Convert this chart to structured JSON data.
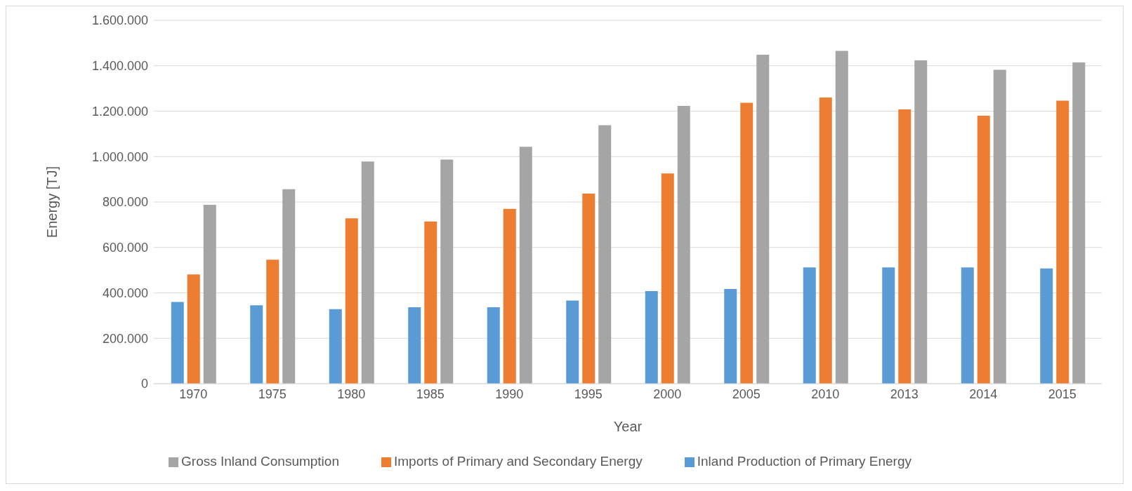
{
  "chart_data": {
    "type": "bar",
    "xlabel": "Year",
    "ylabel": "Energy [TJ]",
    "categories": [
      "1970",
      "1975",
      "1980",
      "1985",
      "1990",
      "1995",
      "2000",
      "2005",
      "2010",
      "2013",
      "2014",
      "2015"
    ],
    "series": [
      {
        "name": "Inland Production of Primary Energy",
        "color": "#5b9bd5",
        "values": [
          360000,
          345000,
          328000,
          337000,
          337000,
          366000,
          408000,
          417000,
          512000,
          512000,
          512000,
          507000
        ]
      },
      {
        "name": "Imports of Primary and Secondary Energy",
        "color": "#ed7d31",
        "values": [
          481000,
          546000,
          728000,
          714000,
          770000,
          837000,
          926000,
          1237000,
          1260000,
          1208000,
          1180000,
          1246000
        ]
      },
      {
        "name": "Gross Inland Consumption",
        "color": "#a5a5a5",
        "values": [
          788000,
          856000,
          978000,
          987000,
          1043000,
          1138000,
          1223000,
          1449000,
          1466000,
          1424000,
          1382000,
          1415000
        ]
      }
    ],
    "ylim": [
      0,
      1600000
    ],
    "yticks": [
      0,
      {
        "value": 200000,
        "label": "200.000"
      },
      {
        "value": 400000,
        "label": "400.000"
      },
      {
        "value": 600000,
        "label": "600.000"
      },
      {
        "value": 800000,
        "label": "800.000"
      },
      {
        "value": 1000000,
        "label": "1.000.000"
      },
      {
        "value": 1200000,
        "label": "1.200.000"
      },
      {
        "value": 1400000,
        "label": "1.400.000"
      },
      {
        "value": 1600000,
        "label": "1.600.000"
      }
    ],
    "grid": "y",
    "legend": "bottom"
  }
}
